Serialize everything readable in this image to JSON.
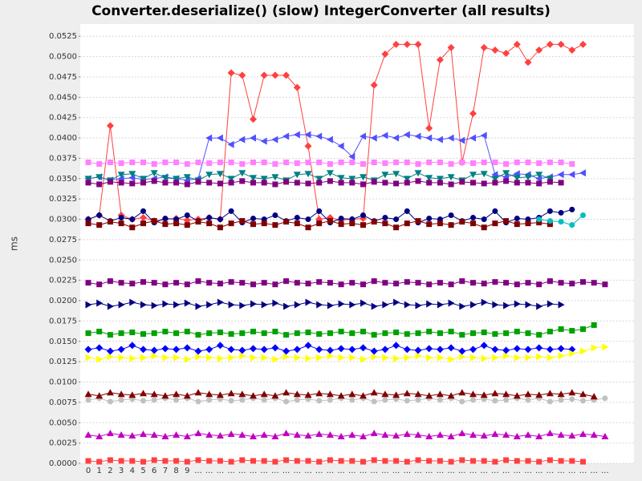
{
  "chart_data": {
    "type": "line",
    "title": "Converter.deserialize() (slow) IntegerConverter (all results)",
    "y_label": "ms",
    "grid": true,
    "categories": [
      "0",
      "1",
      "2",
      "3",
      "4",
      "5",
      "6",
      "7",
      "8",
      "9",
      "...",
      "...",
      "...",
      "...",
      "...",
      "...",
      "...",
      "...",
      "...",
      "...",
      "...",
      "...",
      "...",
      "...",
      "...",
      "...",
      "...",
      "...",
      "...",
      "...",
      "...",
      "...",
      "...",
      "...",
      "...",
      "...",
      "...",
      "...",
      "...",
      "...",
      "...",
      "...",
      "...",
      "...",
      "...",
      "...",
      "...",
      "..."
    ],
    "ylim": [
      0,
      0.054
    ],
    "yticks": [
      {
        "value": 0,
        "label": "0.0000"
      },
      {
        "value": 0.0025,
        "label": "0.0025"
      },
      {
        "value": 0.005,
        "label": "0.0050"
      },
      {
        "value": 0.0075,
        "label": "0.0075"
      },
      {
        "value": 0.01,
        "label": "0.0100"
      },
      {
        "value": 0.0125,
        "label": "0.0125"
      },
      {
        "value": 0.015,
        "label": "0.0150"
      },
      {
        "value": 0.0175,
        "label": "0.0175"
      },
      {
        "value": 0.02,
        "label": "0.0200"
      },
      {
        "value": 0.0225,
        "label": "0.0225"
      },
      {
        "value": 0.025,
        "label": "0.0250"
      },
      {
        "value": 0.0275,
        "label": "0.0275"
      },
      {
        "value": 0.03,
        "label": "0.0300"
      },
      {
        "value": 0.0325,
        "label": "0.0325"
      },
      {
        "value": 0.035,
        "label": "0.0350"
      },
      {
        "value": 0.0375,
        "label": "0.0375"
      },
      {
        "value": 0.04,
        "label": "0.0400"
      },
      {
        "value": 0.0425,
        "label": "0.0425"
      },
      {
        "value": 0.045,
        "label": "0.0450"
      },
      {
        "value": 0.0475,
        "label": "0.0475"
      },
      {
        "value": 0.05,
        "label": "0.0500"
      },
      {
        "value": 0.0525,
        "label": "0.0525"
      }
    ],
    "series": [
      {
        "color": "#ff4040",
        "marker": "diamond",
        "values": [
          0.03,
          0.0305,
          0.0415,
          0.0305,
          0.03,
          0.0302,
          0.0298,
          0.03,
          0.0301,
          0.0299,
          0.03,
          0.0302,
          0.03,
          0.048,
          0.0477,
          0.0423,
          0.0477,
          0.0477,
          0.0477,
          0.0462,
          0.039,
          0.03,
          0.0302,
          0.0299,
          0.03,
          0.0301,
          0.0465,
          0.0503,
          0.0515,
          0.0515,
          0.0515,
          0.0412,
          0.0496,
          0.0511,
          0.037,
          0.043,
          0.0511,
          0.0508,
          0.0504,
          0.0515,
          0.0493,
          0.0508,
          0.0515,
          0.0515,
          0.0508,
          0.0515,
          null,
          null
        ]
      },
      {
        "color": "#5050ff",
        "marker": "triangle-left",
        "values": [
          0.035,
          0.0352,
          0.0348,
          0.035,
          0.0351,
          0.0349,
          0.035,
          0.0352,
          0.035,
          0.0348,
          0.035,
          0.04,
          0.04,
          0.0392,
          0.0398,
          0.04,
          0.0396,
          0.0398,
          0.0402,
          0.0404,
          0.0404,
          0.0402,
          0.0398,
          0.039,
          0.0377,
          0.0402,
          0.04,
          0.0403,
          0.04,
          0.0404,
          0.0402,
          0.04,
          0.0398,
          0.04,
          0.0397,
          0.04,
          0.0403,
          0.0355,
          0.0352,
          0.0356,
          0.0355,
          0.035,
          0.0352,
          0.0355,
          0.0355,
          0.0357,
          null,
          null
        ]
      },
      {
        "color": "#ff80ff",
        "marker": "square",
        "values": [
          0.037,
          0.0368,
          0.037,
          0.0369,
          0.037,
          0.037,
          0.0368,
          0.037,
          0.037,
          0.0368,
          0.037,
          0.0369,
          0.037,
          0.037,
          0.0368,
          0.037,
          0.037,
          0.0368,
          0.037,
          0.0369,
          0.037,
          0.037,
          0.0368,
          0.037,
          0.037,
          0.0368,
          0.037,
          0.0369,
          0.037,
          0.037,
          0.0368,
          0.037,
          0.037,
          0.0368,
          0.037,
          0.0369,
          0.037,
          0.037,
          0.0368,
          0.037,
          0.037,
          0.0369,
          0.037,
          0.037,
          0.0368,
          null,
          null,
          null
        ]
      },
      {
        "color": "#008080",
        "marker": "triangle-down",
        "values": [
          0.035,
          0.0352,
          0.0348,
          0.0355,
          0.0356,
          0.035,
          0.0357,
          0.0351,
          0.035,
          0.0352,
          0.0348,
          0.0355,
          0.0356,
          0.035,
          0.0357,
          0.0351,
          0.035,
          0.0352,
          0.0348,
          0.0355,
          0.0356,
          0.035,
          0.0357,
          0.0351,
          0.035,
          0.0352,
          0.0348,
          0.0355,
          0.0356,
          0.035,
          0.0357,
          0.0351,
          0.035,
          0.0352,
          0.0348,
          0.0355,
          0.0356,
          0.035,
          0.0357,
          0.0351,
          0.0352,
          0.0355,
          0.035,
          null,
          null,
          null,
          null,
          null
        ]
      },
      {
        "color": "#800080",
        "marker": "square",
        "values": [
          0.0345,
          0.0343,
          0.0346,
          0.0345,
          0.0344,
          0.0345,
          0.0347,
          0.0345,
          0.0345,
          0.0343,
          0.0346,
          0.0345,
          0.0344,
          0.0345,
          0.0347,
          0.0345,
          0.0345,
          0.0343,
          0.0346,
          0.0345,
          0.0344,
          0.0345,
          0.0347,
          0.0345,
          0.0345,
          0.0343,
          0.0346,
          0.0345,
          0.0344,
          0.0345,
          0.0347,
          0.0345,
          0.0345,
          0.0343,
          0.0346,
          0.0345,
          0.0344,
          0.0345,
          0.0347,
          0.0345,
          0.0345,
          0.0344,
          0.0346,
          0.0345,
          null,
          null,
          null,
          null
        ]
      },
      {
        "color": "#000080",
        "marker": "circle",
        "values": [
          0.03,
          0.0305,
          0.0298,
          0.0302,
          0.03,
          0.031,
          0.0296,
          0.0301,
          0.03,
          0.0305,
          0.0298,
          0.0302,
          0.03,
          0.031,
          0.0296,
          0.0301,
          0.03,
          0.0305,
          0.0298,
          0.0302,
          0.03,
          0.031,
          0.0296,
          0.0301,
          0.03,
          0.0305,
          0.0298,
          0.0302,
          0.03,
          0.031,
          0.0296,
          0.0301,
          0.03,
          0.0305,
          0.0298,
          0.0302,
          0.03,
          0.031,
          0.0296,
          0.0301,
          0.03,
          0.0302,
          0.031,
          0.0308,
          0.0312,
          null,
          null,
          null
        ]
      },
      {
        "color": "#800000",
        "marker": "square",
        "values": [
          0.0295,
          0.0293,
          0.0297,
          0.0295,
          0.029,
          0.0295,
          0.0298,
          0.0294,
          0.0295,
          0.0293,
          0.0297,
          0.0295,
          0.029,
          0.0295,
          0.0298,
          0.0294,
          0.0295,
          0.0293,
          0.0297,
          0.0295,
          0.029,
          0.0295,
          0.0298,
          0.0294,
          0.0295,
          0.0293,
          0.0297,
          0.0295,
          0.029,
          0.0295,
          0.0298,
          0.0294,
          0.0295,
          0.0293,
          0.0297,
          0.0295,
          0.029,
          0.0295,
          0.0298,
          0.0294,
          0.0295,
          0.0296,
          0.0294,
          null,
          null,
          null,
          null,
          null
        ]
      },
      {
        "color": "#00c0c0",
        "marker": "circle",
        "values": [
          null,
          null,
          null,
          null,
          null,
          null,
          null,
          null,
          null,
          null,
          null,
          null,
          null,
          null,
          null,
          null,
          null,
          null,
          null,
          null,
          null,
          null,
          null,
          null,
          null,
          null,
          null,
          null,
          null,
          null,
          null,
          null,
          null,
          null,
          null,
          null,
          null,
          null,
          null,
          null,
          null,
          0.03,
          0.0298,
          0.0297,
          0.0293,
          0.0305,
          null,
          null
        ]
      },
      {
        "color": "#800080",
        "marker": "square",
        "values": [
          0.0222,
          0.022,
          0.0224,
          0.0222,
          0.0221,
          0.0223,
          0.0222,
          0.022,
          0.0222,
          0.022,
          0.0224,
          0.0222,
          0.0221,
          0.0223,
          0.0222,
          0.022,
          0.0222,
          0.022,
          0.0224,
          0.0222,
          0.0221,
          0.0223,
          0.0222,
          0.022,
          0.0222,
          0.022,
          0.0224,
          0.0222,
          0.0221,
          0.0223,
          0.0222,
          0.022,
          0.0222,
          0.022,
          0.0224,
          0.0222,
          0.0221,
          0.0223,
          0.0222,
          0.022,
          0.0222,
          0.022,
          0.0224,
          0.0222,
          0.0221,
          0.0223,
          0.0222,
          0.022
        ]
      },
      {
        "color": "#000080",
        "marker": "triangle-right",
        "values": [
          0.0195,
          0.0197,
          0.0193,
          0.0195,
          0.0198,
          0.0195,
          0.0194,
          0.0196,
          0.0195,
          0.0197,
          0.0193,
          0.0195,
          0.0198,
          0.0195,
          0.0194,
          0.0196,
          0.0195,
          0.0197,
          0.0193,
          0.0195,
          0.0198,
          0.0195,
          0.0194,
          0.0196,
          0.0195,
          0.0197,
          0.0193,
          0.0195,
          0.0198,
          0.0195,
          0.0194,
          0.0196,
          0.0195,
          0.0197,
          0.0193,
          0.0195,
          0.0198,
          0.0195,
          0.0194,
          0.0196,
          0.0195,
          0.0193,
          0.0196,
          0.0195,
          null,
          null,
          null,
          null
        ]
      },
      {
        "color": "#00a000",
        "marker": "square",
        "values": [
          0.016,
          0.0162,
          0.0158,
          0.016,
          0.0161,
          0.0159,
          0.016,
          0.0162,
          0.016,
          0.0162,
          0.0158,
          0.016,
          0.0161,
          0.0159,
          0.016,
          0.0162,
          0.016,
          0.0162,
          0.0158,
          0.016,
          0.0161,
          0.0159,
          0.016,
          0.0162,
          0.016,
          0.0162,
          0.0158,
          0.016,
          0.0161,
          0.0159,
          0.016,
          0.0162,
          0.016,
          0.0162,
          0.0158,
          0.016,
          0.0161,
          0.0159,
          0.016,
          0.0162,
          0.016,
          0.0158,
          0.0162,
          0.0165,
          0.0163,
          0.0165,
          0.017,
          null
        ]
      },
      {
        "color": "#0000ff",
        "marker": "diamond",
        "values": [
          0.014,
          0.0142,
          0.0138,
          0.014,
          0.0145,
          0.014,
          0.0139,
          0.0141,
          0.014,
          0.0142,
          0.0138,
          0.014,
          0.0145,
          0.014,
          0.0139,
          0.0141,
          0.014,
          0.0142,
          0.0138,
          0.014,
          0.0145,
          0.014,
          0.0139,
          0.0141,
          0.014,
          0.0142,
          0.0138,
          0.014,
          0.0145,
          0.014,
          0.0139,
          0.0141,
          0.014,
          0.0142,
          0.0138,
          0.014,
          0.0145,
          0.014,
          0.0139,
          0.0141,
          0.014,
          0.0142,
          0.014,
          0.0141,
          0.014,
          null,
          null,
          null
        ]
      },
      {
        "color": "#ffff00",
        "marker": "triangle-right",
        "values": [
          0.013,
          0.0128,
          0.0131,
          0.013,
          0.0129,
          0.013,
          0.0132,
          0.013,
          0.013,
          0.0128,
          0.0131,
          0.013,
          0.0129,
          0.013,
          0.0132,
          0.013,
          0.013,
          0.0128,
          0.0131,
          0.013,
          0.0129,
          0.013,
          0.0132,
          0.013,
          0.013,
          0.0128,
          0.0131,
          0.013,
          0.0129,
          0.013,
          0.0132,
          0.013,
          0.013,
          0.0128,
          0.0131,
          0.013,
          0.0129,
          0.013,
          0.0132,
          0.013,
          0.013,
          0.0131,
          0.013,
          0.0132,
          0.0135,
          0.0138,
          0.0142,
          0.0143
        ]
      },
      {
        "color": "#c0c0c0",
        "marker": "circle",
        "values": [
          0.0078,
          0.008,
          0.0076,
          0.0078,
          0.0079,
          0.0077,
          0.0078,
          0.008,
          0.0078,
          0.008,
          0.0076,
          0.0078,
          0.0079,
          0.0077,
          0.0078,
          0.008,
          0.0078,
          0.008,
          0.0076,
          0.0078,
          0.0079,
          0.0077,
          0.0078,
          0.008,
          0.0078,
          0.008,
          0.0076,
          0.0078,
          0.0079,
          0.0077,
          0.0078,
          0.008,
          0.0078,
          0.008,
          0.0076,
          0.0078,
          0.0079,
          0.0077,
          0.0078,
          0.008,
          0.0078,
          0.008,
          0.0076,
          0.0078,
          0.0079,
          0.0077,
          0.0078,
          0.008
        ]
      },
      {
        "color": "#800000",
        "marker": "triangle-up",
        "values": [
          0.0085,
          0.0083,
          0.0087,
          0.0085,
          0.0084,
          0.0086,
          0.0085,
          0.0083,
          0.0085,
          0.0083,
          0.0087,
          0.0085,
          0.0084,
          0.0086,
          0.0085,
          0.0083,
          0.0085,
          0.0083,
          0.0087,
          0.0085,
          0.0084,
          0.0086,
          0.0085,
          0.0083,
          0.0085,
          0.0083,
          0.0087,
          0.0085,
          0.0084,
          0.0086,
          0.0085,
          0.0083,
          0.0085,
          0.0083,
          0.0087,
          0.0085,
          0.0084,
          0.0086,
          0.0085,
          0.0083,
          0.0085,
          0.0084,
          0.0086,
          0.0085,
          0.0087,
          0.0085,
          0.0082,
          null
        ]
      },
      {
        "color": "#c000c0",
        "marker": "triangle-up",
        "values": [
          0.0035,
          0.0033,
          0.0037,
          0.0035,
          0.0034,
          0.0036,
          0.0035,
          0.0033,
          0.0035,
          0.0033,
          0.0037,
          0.0035,
          0.0034,
          0.0036,
          0.0035,
          0.0033,
          0.0035,
          0.0033,
          0.0037,
          0.0035,
          0.0034,
          0.0036,
          0.0035,
          0.0033,
          0.0035,
          0.0033,
          0.0037,
          0.0035,
          0.0034,
          0.0036,
          0.0035,
          0.0033,
          0.0035,
          0.0033,
          0.0037,
          0.0035,
          0.0034,
          0.0036,
          0.0035,
          0.0033,
          0.0035,
          0.0033,
          0.0037,
          0.0035,
          0.0034,
          0.0036,
          0.0035,
          0.0033
        ]
      },
      {
        "color": "#ff4040",
        "marker": "square",
        "values": [
          0.0003,
          0.0002,
          0.0004,
          0.0003,
          0.0003,
          0.0002,
          0.0004,
          0.0003,
          0.0003,
          0.0002,
          0.0004,
          0.0003,
          0.0003,
          0.0002,
          0.0004,
          0.0003,
          0.0003,
          0.0002,
          0.0004,
          0.0003,
          0.0003,
          0.0002,
          0.0004,
          0.0003,
          0.0003,
          0.0002,
          0.0004,
          0.0003,
          0.0003,
          0.0002,
          0.0004,
          0.0003,
          0.0003,
          0.0002,
          0.0004,
          0.0003,
          0.0003,
          0.0002,
          0.0004,
          0.0003,
          0.0003,
          0.0002,
          0.0004,
          0.0003,
          0.0003,
          0.0002,
          null,
          null
        ]
      }
    ]
  }
}
